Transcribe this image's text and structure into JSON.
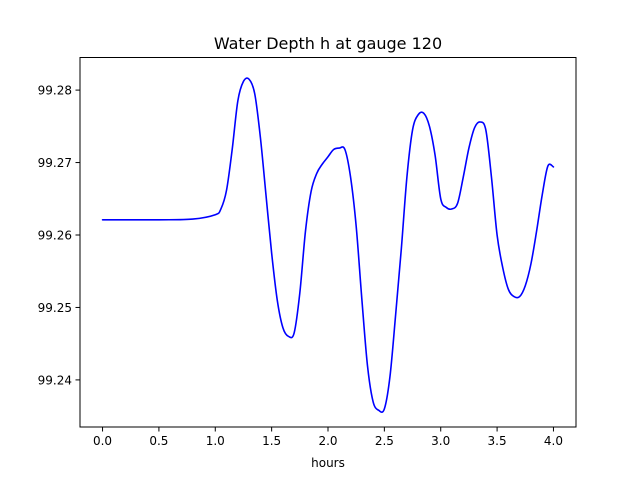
{
  "chart_data": {
    "type": "line",
    "title": "Water Depth h at gauge 120",
    "xlabel": "hours",
    "ylabel": "",
    "xlim": [
      -0.2,
      4.2
    ],
    "ylim": [
      99.2335,
      99.2845
    ],
    "x_ticks": [
      0.0,
      0.5,
      1.0,
      1.5,
      2.0,
      2.5,
      3.0,
      3.5,
      4.0
    ],
    "x_tick_labels": [
      "0.0",
      "0.5",
      "1.0",
      "1.5",
      "2.0",
      "2.5",
      "3.0",
      "3.5",
      "4.0"
    ],
    "y_ticks": [
      99.24,
      99.25,
      99.26,
      99.27,
      99.28
    ],
    "y_tick_labels": [
      "99.24",
      "99.25",
      "99.26",
      "99.27",
      "99.28"
    ],
    "grid": false,
    "series": [
      {
        "color": "#0000ff",
        "x": [
          0.0,
          0.5,
          0.8,
          1.0,
          1.05,
          1.1,
          1.15,
          1.2,
          1.25,
          1.3,
          1.35,
          1.4,
          1.45,
          1.5,
          1.55,
          1.6,
          1.65,
          1.7,
          1.75,
          1.8,
          1.85,
          1.9,
          1.95,
          2.0,
          2.05,
          2.1,
          2.15,
          2.2,
          2.25,
          2.3,
          2.35,
          2.4,
          2.45,
          2.5,
          2.55,
          2.6,
          2.65,
          2.7,
          2.75,
          2.8,
          2.85,
          2.9,
          2.95,
          3.0,
          3.05,
          3.1,
          3.15,
          3.2,
          3.25,
          3.3,
          3.35,
          3.4,
          3.45,
          3.5,
          3.55,
          3.6,
          3.65,
          3.7,
          3.75,
          3.8,
          3.85,
          3.9,
          3.95,
          4.0
        ],
        "y": [
          99.2621,
          99.2621,
          99.2622,
          99.2628,
          99.2636,
          99.2662,
          99.2718,
          99.2785,
          99.2812,
          99.2815,
          99.2795,
          99.2735,
          99.2655,
          99.2575,
          99.251,
          99.2472,
          99.246,
          99.2465,
          99.252,
          99.2605,
          99.266,
          99.2685,
          99.2698,
          99.2708,
          99.2718,
          99.272,
          99.2718,
          99.268,
          99.2612,
          99.2512,
          99.242,
          99.237,
          99.2358,
          99.236,
          99.2405,
          99.249,
          99.258,
          99.268,
          99.2745,
          99.2766,
          99.2768,
          99.275,
          99.271,
          99.265,
          99.2638,
          99.2636,
          99.2644,
          99.268,
          99.272,
          99.2748,
          99.2756,
          99.2745,
          99.268,
          99.26,
          99.2555,
          99.2525,
          99.2515,
          99.2515,
          99.253,
          99.256,
          99.2605,
          99.2655,
          99.2695,
          99.2694
        ]
      }
    ]
  }
}
